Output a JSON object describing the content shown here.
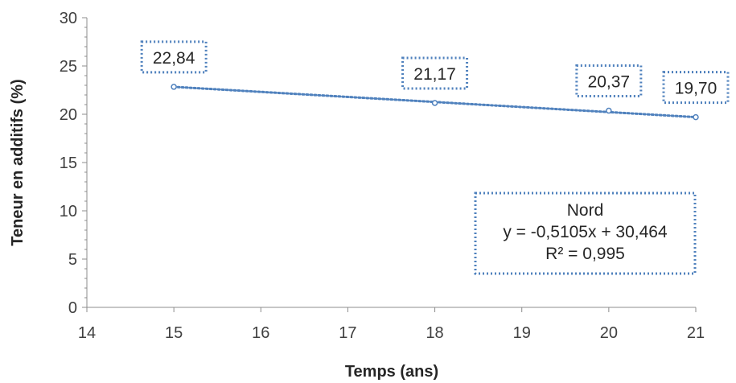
{
  "chart_data": {
    "type": "scatter",
    "xlabel": "Temps (ans)",
    "ylabel": "Teneur en additifs (%)",
    "xlim": [
      14,
      21
    ],
    "ylim": [
      0,
      30
    ],
    "x_ticks": [
      "14",
      "15",
      "16",
      "17",
      "18",
      "19",
      "20",
      "21"
    ],
    "y_ticks": [
      "0",
      "5",
      "10",
      "15",
      "20",
      "25",
      "30"
    ],
    "grid": false,
    "series": [
      {
        "points": [
          {
            "x": 15,
            "y": 22.84,
            "label": "22,84"
          },
          {
            "x": 18,
            "y": 21.17,
            "label": "21,17"
          },
          {
            "x": 20,
            "y": 20.37,
            "label": "20,37"
          },
          {
            "x": 21,
            "y": 19.7,
            "label": "19,70"
          }
        ],
        "color": "#4F81BD"
      }
    ],
    "trendline": {
      "x": [
        15,
        21
      ],
      "y": [
        22.84,
        19.7
      ],
      "color": "#4F81BD",
      "style": "dotted"
    },
    "equation_box": {
      "lines": [
        "Nord",
        "y = -0,5105x + 30,464",
        "R² = 0,995"
      ]
    }
  }
}
